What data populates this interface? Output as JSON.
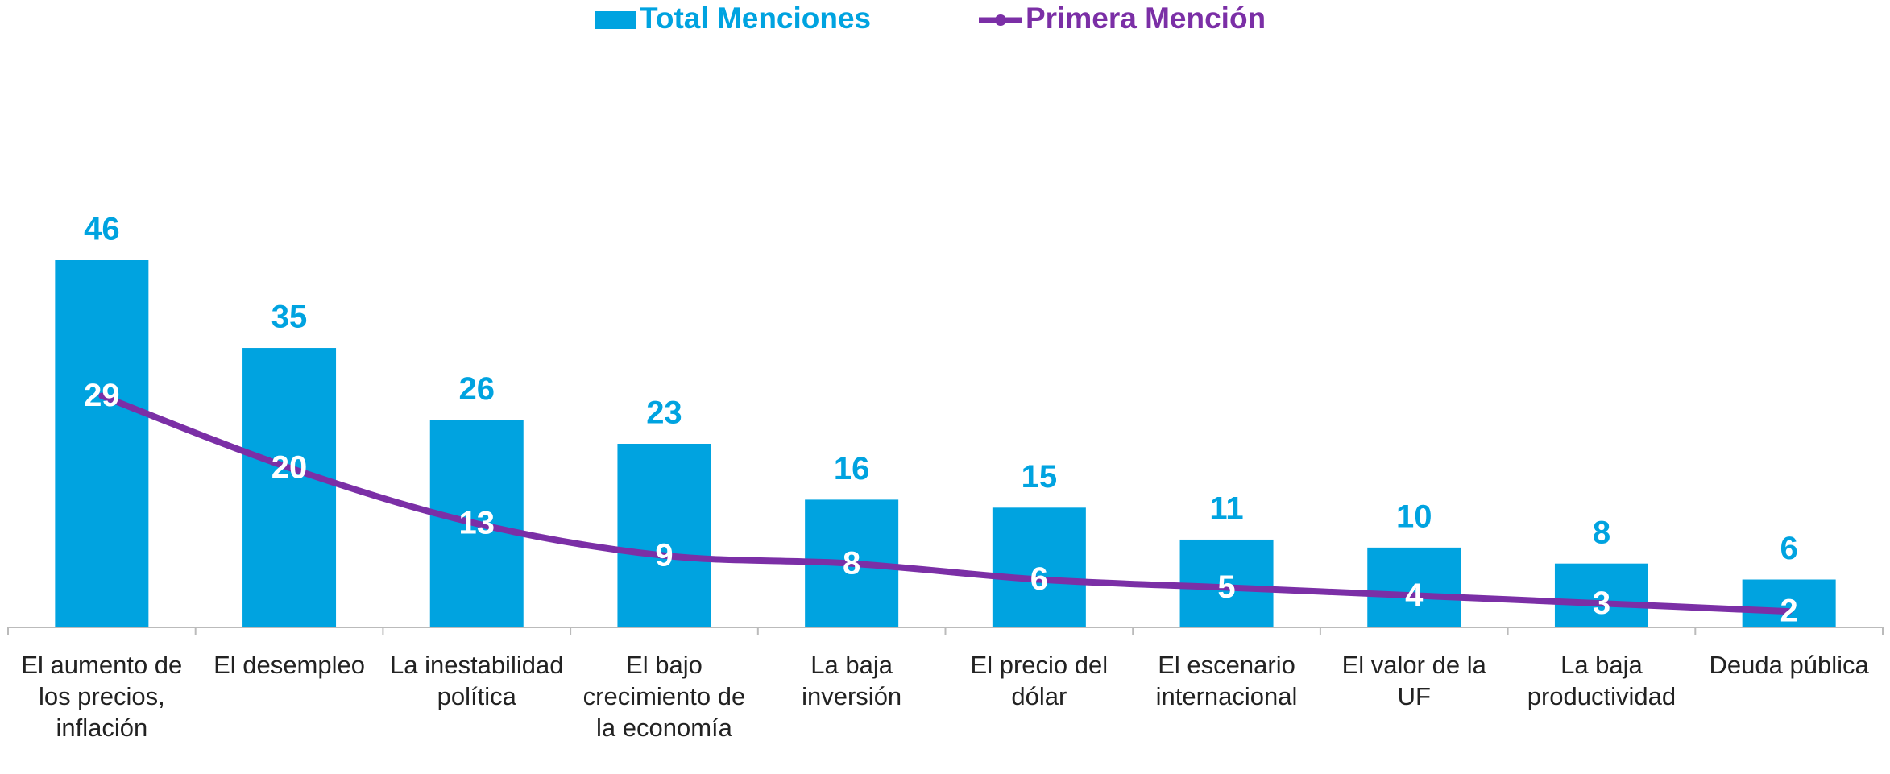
{
  "chart_data": {
    "type": "bar",
    "categories": [
      "El aumento de los precios, inflación",
      "El desempleo",
      "La inestabilidad política",
      "El bajo crecimiento de la economía",
      "La baja inversión",
      "El precio del dólar",
      "El escenario internacional",
      "El valor de la UF",
      "La baja productividad",
      "Deuda pública"
    ],
    "series": [
      {
        "name": "Total Menciones",
        "type": "bar",
        "color": "#00a3e0",
        "values": [
          46,
          35,
          26,
          23,
          16,
          15,
          11,
          10,
          8,
          6
        ]
      },
      {
        "name": "Primera Mención",
        "type": "line",
        "color": "#7b2fa6",
        "values": [
          29,
          20,
          13,
          9,
          8,
          6,
          5,
          4,
          3,
          2
        ]
      }
    ],
    "legend": "top"
  }
}
